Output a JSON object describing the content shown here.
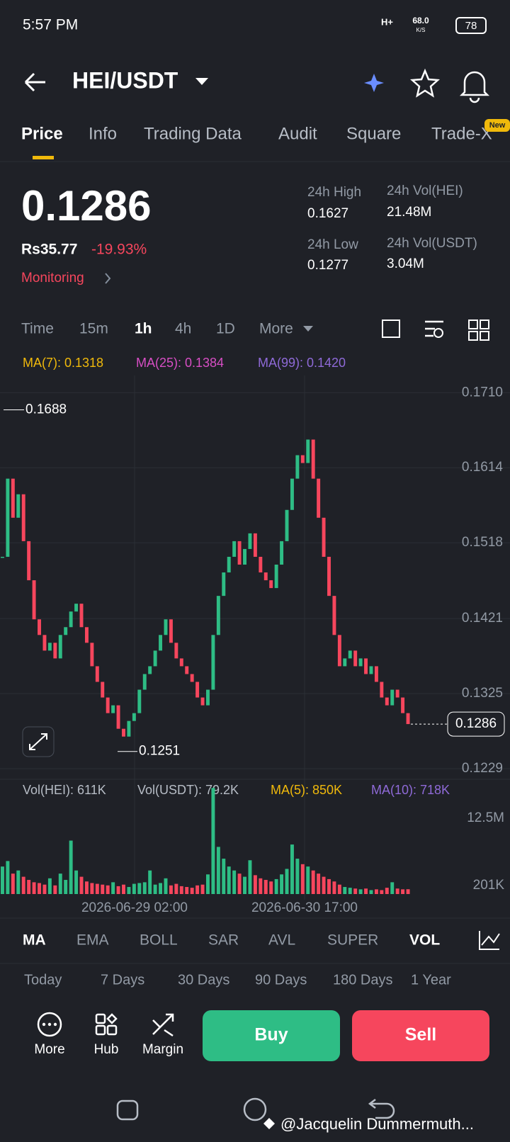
{
  "status_bar": {
    "time": "5:57 PM",
    "network": "H+",
    "speed": "68.0",
    "speed_unit": "K/S",
    "battery": "78"
  },
  "header": {
    "pair": "HEI/USDT"
  },
  "tabs": [
    "Price",
    "Info",
    "Trading Data",
    "Audit",
    "Square",
    "Trade-X"
  ],
  "new_badge": "New",
  "ticker": {
    "price": "0.1286",
    "local_price": "Rs35.77",
    "change": "-19.93%",
    "status": "Monitoring",
    "high_label": "24h High",
    "high": "0.1627",
    "low_label": "24h Low",
    "low": "0.1277",
    "vol_hei_label": "24h Vol(HEI)",
    "vol_hei": "21.48M",
    "vol_usdt_label": "24h Vol(USDT)",
    "vol_usdt": "3.04M"
  },
  "intervals": [
    "Time",
    "15m",
    "1h",
    "4h",
    "1D",
    "More"
  ],
  "chart_data": {
    "type": "candlestick",
    "ma_labels": [
      "MA(7): 0.1318",
      "MA(25): 0.1384",
      "MA(99): 0.1420"
    ],
    "closes": [
      0.15,
      0.16,
      0.155,
      0.158,
      0.152,
      0.147,
      0.142,
      0.14,
      0.138,
      0.139,
      0.137,
      0.14,
      0.141,
      0.143,
      0.144,
      0.141,
      0.139,
      0.136,
      0.134,
      0.132,
      0.13,
      0.131,
      0.128,
      0.127,
      0.129,
      0.13,
      0.133,
      0.135,
      0.136,
      0.138,
      0.14,
      0.142,
      0.139,
      0.137,
      0.136,
      0.135,
      0.134,
      0.132,
      0.131,
      0.133,
      0.14,
      0.145,
      0.148,
      0.15,
      0.152,
      0.149,
      0.151,
      0.153,
      0.15,
      0.148,
      0.147,
      0.146,
      0.149,
      0.152,
      0.156,
      0.16,
      0.163,
      0.162,
      0.165,
      0.16,
      0.155,
      0.15,
      0.145,
      0.14,
      0.136,
      0.137,
      0.138,
      0.136,
      0.137,
      0.135,
      0.136,
      0.134,
      0.132,
      0.131,
      0.133,
      0.132,
      0.13,
      0.1286
    ],
    "ylim": [
      0.1219,
      0.1732
    ],
    "yticks": [
      {
        "value": 0.171,
        "label": "0.1710"
      },
      0.1614,
      0.1518,
      0.1421,
      0.1325,
      0.1229
    ],
    "high_marker": 0.1688,
    "low_marker": 0.1251,
    "last_price": 0.1286,
    "x_labels": [
      "2026-06-29 02:00",
      "2026-06-30 17:00"
    ],
    "up_color": "#2ebd85",
    "down_color": "#f6465d",
    "volume": {
      "labels": [
        "Vol(HEI): 611K",
        "Vol(USDT): 79.2K",
        "MA(5): 850K",
        "MA(10): 718K"
      ],
      "values": [
        3500000,
        4200000,
        2600000,
        3000000,
        2200000,
        1800000,
        1500000,
        1400000,
        1200000,
        2000000,
        1100000,
        2600000,
        1800000,
        6800000,
        3000000,
        2200000,
        1600000,
        1400000,
        1300000,
        1200000,
        1100000,
        1500000,
        1000000,
        1200000,
        900000,
        1300000,
        1400000,
        1500000,
        3000000,
        1200000,
        1400000,
        2000000,
        1100000,
        1300000,
        1000000,
        900000,
        800000,
        1100000,
        1200000,
        2500000,
        13500000,
        6000000,
        4500000,
        3500000,
        3000000,
        2600000,
        2200000,
        4300000,
        2400000,
        2000000,
        1800000,
        1600000,
        1900000,
        2500000,
        3200000,
        6300000,
        4500000,
        3800000,
        3500000,
        3000000,
        2600000,
        2200000,
        1900000,
        1600000,
        1200000,
        900000,
        800000,
        700000,
        600000,
        700000,
        500000,
        600000,
        500000,
        800000,
        1500000,
        700000,
        600000,
        611000
      ],
      "ylim": [
        0,
        14600000
      ],
      "yticks": [
        {
          "value": 12500000,
          "label": "12.5M"
        },
        {
          "value": 201000,
          "label": "201K"
        }
      ]
    }
  },
  "indicators": [
    "MA",
    "EMA",
    "BOLL",
    "SAR",
    "AVL",
    "SUPER",
    "VOL"
  ],
  "periods": [
    "Today",
    "7 Days",
    "30 Days",
    "90 Days",
    "180 Days",
    "1 Year"
  ],
  "actions": [
    "More",
    "Hub",
    "Margin"
  ],
  "buttons": {
    "buy": "Buy",
    "sell": "Sell"
  },
  "watermark": "@Jacquelin Dummermuth..."
}
